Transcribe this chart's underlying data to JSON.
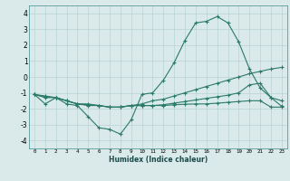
{
  "title": "",
  "xlabel": "Humidex (Indice chaleur)",
  "x": [
    0,
    1,
    2,
    3,
    4,
    5,
    6,
    7,
    8,
    9,
    10,
    11,
    12,
    13,
    14,
    15,
    16,
    17,
    18,
    19,
    20,
    21,
    22,
    23
  ],
  "line1": [
    -1.1,
    -1.7,
    -1.3,
    -1.7,
    -1.8,
    -2.5,
    -3.2,
    -3.3,
    -3.6,
    -2.7,
    -1.1,
    -1.0,
    -0.2,
    0.9,
    2.3,
    3.4,
    3.5,
    3.8,
    3.4,
    2.2,
    0.5,
    -0.7,
    -1.3,
    -1.5
  ],
  "line2": [
    -1.1,
    -1.3,
    -1.3,
    -1.5,
    -1.7,
    -1.7,
    -1.8,
    -1.9,
    -1.9,
    -1.8,
    -1.7,
    -1.5,
    -1.4,
    -1.2,
    -1.0,
    -0.8,
    -0.6,
    -0.4,
    -0.2,
    0.0,
    0.2,
    0.35,
    0.5,
    0.6
  ],
  "line3": [
    -1.1,
    -1.2,
    -1.3,
    -1.5,
    -1.7,
    -1.8,
    -1.8,
    -1.9,
    -1.9,
    -1.8,
    -1.8,
    -1.8,
    -1.8,
    -1.75,
    -1.72,
    -1.7,
    -1.7,
    -1.65,
    -1.6,
    -1.55,
    -1.5,
    -1.5,
    -1.9,
    -1.9
  ],
  "line4": [
    -1.1,
    -1.25,
    -1.3,
    -1.5,
    -1.7,
    -1.75,
    -1.8,
    -1.9,
    -1.9,
    -1.8,
    -1.8,
    -1.8,
    -1.75,
    -1.65,
    -1.55,
    -1.45,
    -1.35,
    -1.25,
    -1.15,
    -1.0,
    -0.5,
    -0.4,
    -1.3,
    -1.85
  ],
  "ylim": [
    -4.5,
    4.5
  ],
  "xlim": [
    -0.5,
    23.5
  ],
  "yticks": [
    -4,
    -3,
    -2,
    -1,
    0,
    1,
    2,
    3,
    4
  ],
  "xticks": [
    0,
    1,
    2,
    3,
    4,
    5,
    6,
    7,
    8,
    9,
    10,
    11,
    12,
    13,
    14,
    15,
    16,
    17,
    18,
    19,
    20,
    21,
    22,
    23
  ],
  "line_color": "#2a7a6a",
  "bg_color": "#daeaea",
  "grid_color": "#b8d4d4",
  "figsize": [
    3.2,
    2.0
  ],
  "dpi": 100
}
